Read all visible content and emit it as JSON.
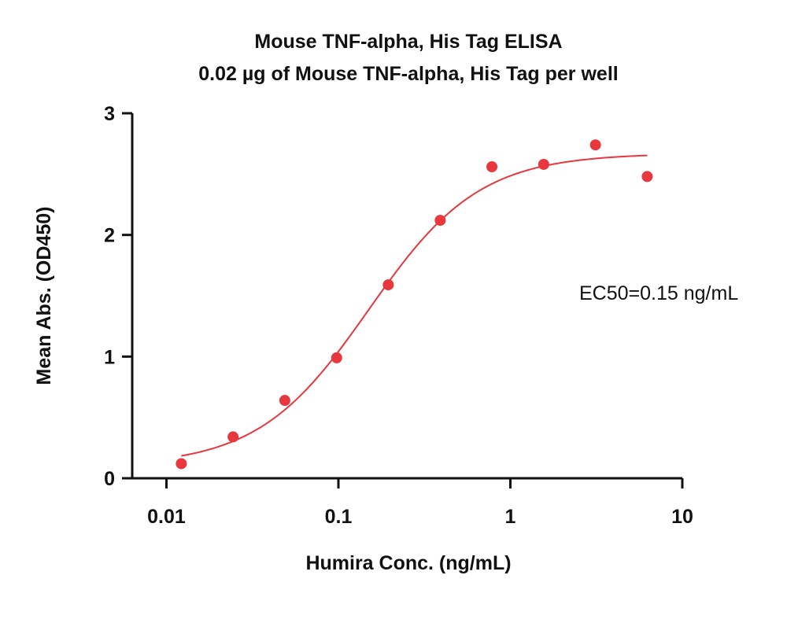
{
  "chart_data": {
    "type": "scatter",
    "title": "Mouse TNF-alpha, His Tag ELISA",
    "subtitle": "0.02 µg of Mouse TNF-alpha, His Tag per well",
    "xlabel": "Humira Conc. (ng/mL)",
    "ylabel": "Mean Abs. (OD450)",
    "x_scale": "log",
    "xlim": [
      0.0055,
      10
    ],
    "ylim": [
      0,
      3
    ],
    "x_ticks": [
      0.01,
      0.1,
      1,
      10
    ],
    "x_tick_labels": [
      "0.01",
      "0.1",
      "1",
      "10"
    ],
    "y_ticks": [
      0,
      1,
      2,
      3
    ],
    "y_tick_labels": [
      "0",
      "1",
      "2",
      "3"
    ],
    "grid": false,
    "color": "#e8373d",
    "series": [
      {
        "x": [
          0.0122,
          0.0244,
          0.0488,
          0.0977,
          0.195,
          0.391,
          0.781,
          1.5625,
          3.125,
          6.25
        ],
        "y": [
          0.12,
          0.34,
          0.64,
          0.99,
          1.59,
          2.12,
          2.56,
          2.58,
          2.74,
          2.48
        ]
      }
    ],
    "fit_curve": {
      "model": "4PL",
      "bottom": 0.1,
      "top": 2.67,
      "ec50": 0.15,
      "hill": 1.35,
      "x_range": [
        0.0122,
        6.25
      ]
    },
    "annotation": "EC50=0.15 ng/mL"
  }
}
